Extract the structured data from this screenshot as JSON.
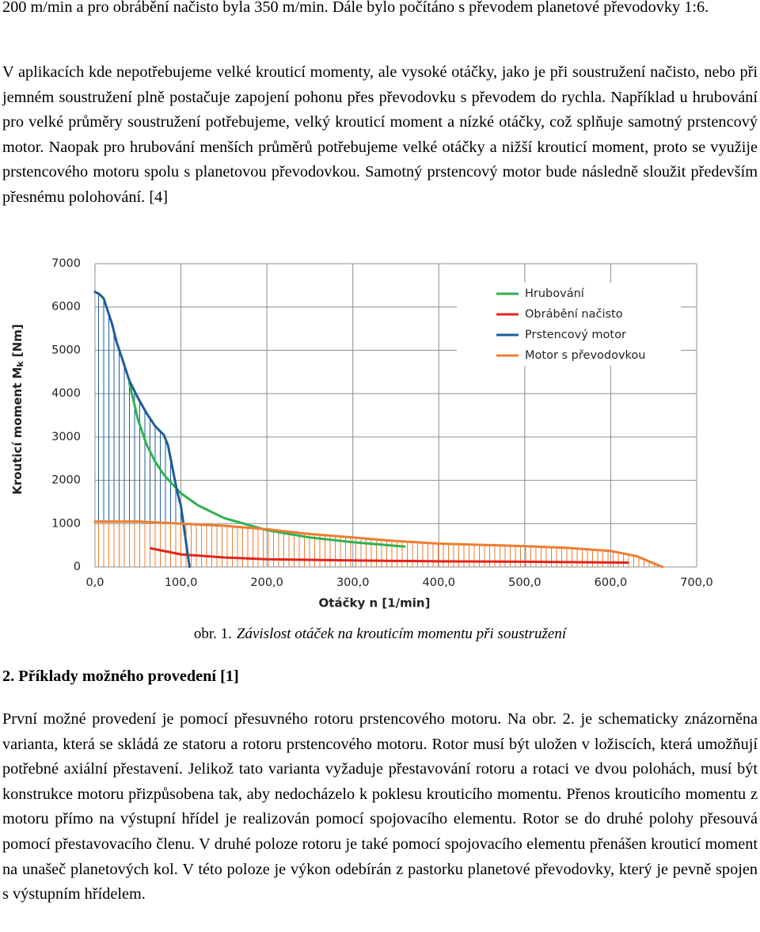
{
  "text_before": [
    "200 m/min a pro obrábění načisto byla 350 m/min. Dále bylo počítáno s převodem planetové převodovky 1:6.",
    "V aplikacích kde nepotřebujeme velké krouticí momenty, ale vysoké otáčky, jako je při soustružení načisto, nebo při jemném soustružení plně postačuje zapojení pohonu přes převodovku s převodem do rychla. Například u hrubování pro velké průměry soustružení potřebujeme, velký krouticí moment a nízké otáčky, což splňuje samotný prstencový motor. Naopak pro hrubování menších průměrů potřebujeme velké otáčky a nižší krouticí moment, proto se využije prstencového motoru spolu s planetovou převodovkou. Samotný prstencový motor bude následně sloužit především přesnému polohování. [4]"
  ],
  "chart_data": {
    "type": "line",
    "xlabel": "Otáčky n [1/min]",
    "ylabel": [
      "Krouticí moment M",
      "k",
      "[Nm]"
    ],
    "xlim": [
      0,
      700
    ],
    "ylim": [
      0,
      7000
    ],
    "xticks": [
      {
        "value": 0,
        "label": "0,0"
      },
      {
        "value": 100,
        "label": "100,0"
      },
      {
        "value": 200,
        "label": "200,0"
      },
      {
        "value": 300,
        "label": "300,0"
      },
      {
        "value": 400,
        "label": "400,0"
      },
      {
        "value": 500,
        "label": "500,0"
      },
      {
        "value": 600,
        "label": "600,0"
      },
      {
        "value": 700,
        "label": "700,0"
      }
    ],
    "yticks": [
      0,
      1000,
      2000,
      3000,
      4000,
      5000,
      6000,
      7000
    ],
    "grid": true,
    "legend": "upper right",
    "series": [
      {
        "name": "Hrubování",
        "color": "#2eb34f",
        "x": [
          40,
          50,
          60,
          70,
          80,
          100,
          120,
          150,
          200,
          250,
          300,
          360
        ],
        "values": [
          4250,
          3400,
          2830,
          2430,
          2130,
          1700,
          1420,
          1130,
          850,
          680,
          570,
          470
        ]
      },
      {
        "name": "Obrábění načisto",
        "color": "#e3231c",
        "x": [
          65,
          100,
          150,
          200,
          300,
          400,
          500,
          620
        ],
        "values": [
          430,
          290,
          220,
          180,
          150,
          130,
          120,
          100
        ]
      },
      {
        "name": "Prstencový motor",
        "color": "#1f5c99",
        "hatch": true,
        "x": [
          0,
          5,
          10,
          15,
          20,
          25,
          30,
          40,
          50,
          60,
          70,
          75,
          80,
          85,
          90,
          95,
          100,
          105,
          110
        ],
        "values": [
          6350,
          6300,
          6200,
          5900,
          5600,
          5200,
          4900,
          4300,
          3900,
          3550,
          3250,
          3150,
          3050,
          2800,
          2300,
          1800,
          1400,
          700,
          0
        ]
      },
      {
        "name": "Motor s převodovkou",
        "color": "#ed7d31",
        "hatch": true,
        "x": [
          0,
          50,
          100,
          150,
          200,
          250,
          300,
          350,
          400,
          450,
          500,
          550,
          600,
          630,
          660
        ],
        "values": [
          1050,
          1050,
          1000,
          950,
          870,
          760,
          680,
          600,
          540,
          510,
          480,
          440,
          370,
          250,
          0
        ]
      }
    ]
  },
  "caption": {
    "label": "obr. 1.",
    "text": "Závislost otáček na krouticím momentu při soustružení"
  },
  "heading": "2. Příklady možného provedení [1]",
  "text_after": [
    "První možné provedení je pomocí přesuvného rotoru prstencového motoru. Na obr. 2. je schematicky znázorněna varianta, která se skládá ze statoru a rotoru prstencového motoru. Rotor musí být uložen v ložiscích, která umožňují potřebné axiální přestavení. Jelikož tato varianta vyžaduje přestavování rotoru a rotaci ve dvou polohách, musí být konstrukce motoru přizpůsobena tak, aby nedocházelo k poklesu krouticího momentu. Přenos krouticího momentu z motoru přímo na výstupní hřídel je realizován pomocí spojovacího elementu. Rotor se do druhé polohy přesouvá pomocí přestavovacího členu. V druhé poloze rotoru je také pomocí spojovacího elementu přenášen krouticí moment na unašeč planetových kol. V této poloze je výkon odebírán z pastorku planetové převodovky, který je pevně spojen s výstupním hřídelem."
  ]
}
